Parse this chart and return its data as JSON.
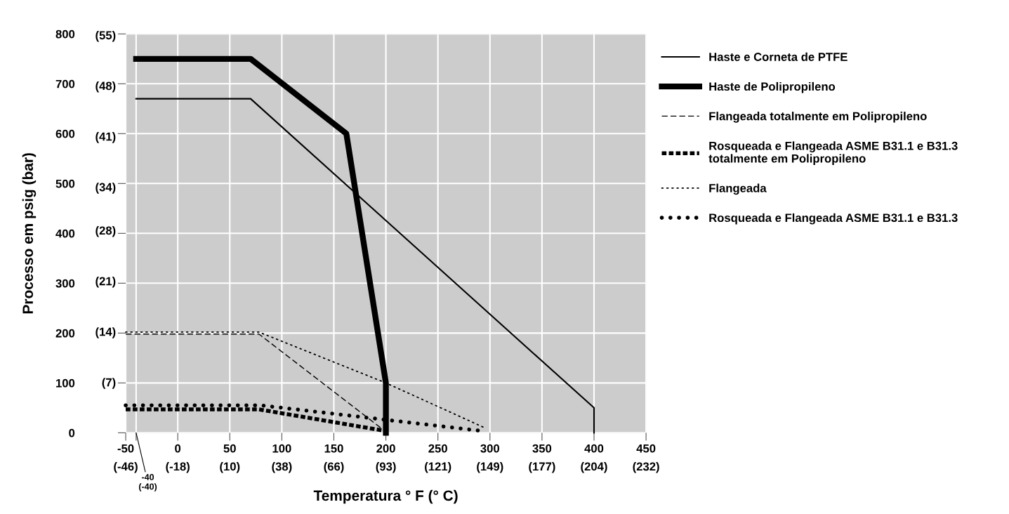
{
  "chart_data": {
    "type": "line",
    "xlabel": "Temperatura ° F (° C)",
    "ylabel": "Processo em psig (bar)",
    "xlim": [
      -50,
      450
    ],
    "ylim": [
      0,
      800
    ],
    "xticks": [
      -50,
      {
        "value": -40,
        "label": null
      },
      0,
      50,
      100,
      150,
      200,
      250,
      300,
      350,
      400,
      450
    ],
    "x2lim": [
      -45.56,
      232.22
    ],
    "x2ticks": [
      {
        "value": -45.56,
        "label": "(-46)"
      },
      {
        "value": -17.78,
        "label": "(-18)"
      },
      {
        "value": 10,
        "label": "(10)"
      },
      {
        "value": 37.78,
        "label": "(38)"
      },
      {
        "value": 65.56,
        "label": "(66)"
      },
      {
        "value": 93.33,
        "label": "(93)"
      },
      {
        "value": 121.11,
        "label": "(121)"
      },
      {
        "value": 148.89,
        "label": "(149)"
      },
      {
        "value": 176.67,
        "label": "(177)"
      },
      {
        "value": 204.44,
        "label": "(204)"
      },
      {
        "value": 232.22,
        "label": "(232)"
      }
    ],
    "yticks": [
      0,
      100,
      200,
      300,
      400,
      500,
      600,
      700,
      800
    ],
    "y2lim": [
      0,
      55.16
    ],
    "y2ticks": [
      {
        "value": 7,
        "label": "(7)"
      },
      {
        "value": 14,
        "label": "(14)"
      },
      {
        "value": 21,
        "label": "(21)"
      },
      {
        "value": 28,
        "label": "(28)"
      },
      {
        "value": 34,
        "label": "(34)"
      },
      {
        "value": 41,
        "label": "(41)"
      },
      {
        "value": 48,
        "label": "(48)"
      },
      {
        "value": 55,
        "label": "(55)"
      }
    ],
    "annotations": [
      "-40\n(-40)"
    ],
    "grid": true,
    "legend": "right",
    "marker": "none",
    "series": [
      {
        "name": "Haste e Corneta de PTFE",
        "color": "#000000",
        "line_style": "solid",
        "x": [
          -40,
          70,
          400,
          400
        ],
        "values": [
          670,
          670,
          50,
          0
        ]
      },
      {
        "name": "Haste de Polipropileno",
        "color": "#000000",
        "line_style": "solid",
        "x": [
          -40,
          70,
          162,
          200,
          200
        ],
        "values": [
          750,
          750,
          600,
          100,
          0
        ]
      },
      {
        "name": "Flangeada totalmente em Polipropileno",
        "color": "#000000",
        "line_style": "dashed",
        "x": [
          -50,
          78,
          195
        ],
        "values": [
          198,
          198,
          10
        ]
      },
      {
        "name": "Rosqueada e Flangeada ASME B31.1 e B31.3\ntotalmente em Polipropileno",
        "color": "#000000",
        "line_style": "dashed",
        "x": [
          -50,
          78,
          196
        ],
        "values": [
          47,
          47,
          5
        ]
      },
      {
        "name": "Flangeada",
        "color": "#000000",
        "line_style": "dotted",
        "x": [
          -50,
          78,
          200,
          295
        ],
        "values": [
          202,
          202,
          100,
          10
        ]
      },
      {
        "name": "Rosqueada e Flangeada ASME B31.1 e B31.3",
        "color": "#000000",
        "line_style": "dotted",
        "x": [
          -50,
          80,
          200,
          295
        ],
        "values": [
          55,
          55,
          26,
          3
        ]
      }
    ]
  }
}
